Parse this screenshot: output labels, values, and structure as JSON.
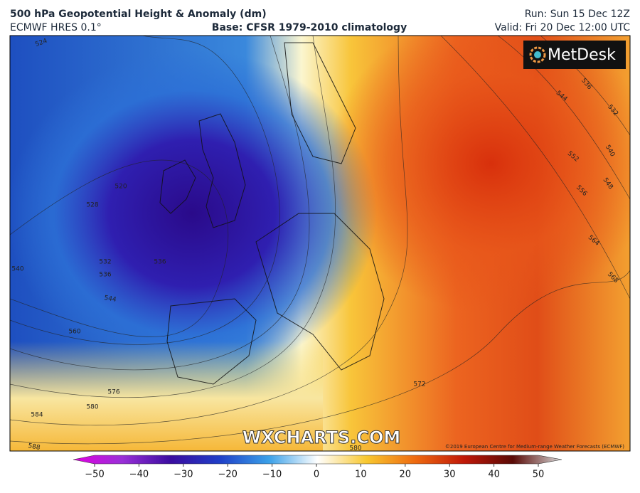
{
  "header": {
    "title": "500 hPa Geopotential Height & Anomaly (dm)",
    "model": "ECMWF HRES 0.1°",
    "base": "Base: CFSR 1979-2010 climatology",
    "run": "Run: Sun 15 Dec 12Z",
    "valid": "Valid: Fri 20 Dec 12:00 UTC"
  },
  "logo": "MetDesk",
  "watermark": "WXCHARTS.COM",
  "copyright": "©2019 European Centre for Medium-range Weather Forecasts (ECMWF)",
  "contour_labels": [
    "524",
    "540",
    "544",
    "560",
    "576",
    "580",
    "584",
    "588",
    "520",
    "528",
    "532",
    "536",
    "536",
    "544",
    "536",
    "532",
    "540",
    "552",
    "548",
    "556",
    "564",
    "568",
    "572",
    "580"
  ],
  "colorbar": {
    "ticks": [
      "−50",
      "−40",
      "−30",
      "−20",
      "−10",
      "0",
      "10",
      "20",
      "30",
      "40",
      "50"
    ]
  }
}
